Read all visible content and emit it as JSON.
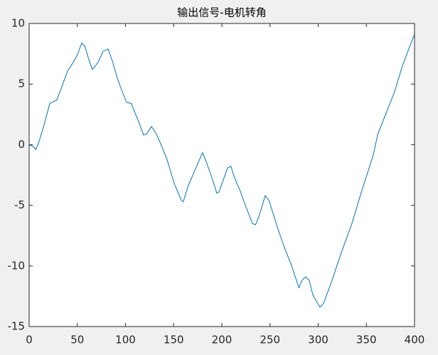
{
  "chart_data": {
    "type": "line",
    "title": "输出信号-电机转角",
    "x": [
      0,
      3,
      5,
      7,
      10,
      15,
      21.4,
      24,
      28.8,
      33,
      40,
      43.5,
      50,
      54.6,
      58,
      62,
      65.7,
      71.6,
      76.7,
      81.9,
      86,
      91.5,
      96,
      101,
      106,
      110,
      113.7,
      118.8,
      122,
      127,
      132,
      138,
      143,
      150.6,
      158,
      160,
      165,
      172.7,
      180,
      183.8,
      190,
      194.8,
      197,
      206,
      209.6,
      213,
      219,
      224,
      231.7,
      235,
      239,
      245,
      249,
      257.6,
      265,
      272,
      280,
      283,
      287,
      290.8,
      294.5,
      301.8,
      305.5,
      313,
      324,
      335,
      346,
      357,
      362,
      372,
      379,
      387,
      394,
      400
    ],
    "series": [
      {
        "color": "#0072bd",
        "values": [
          0,
          -0.1,
          -0.2,
          -0.4,
          0.2,
          1.5,
          3.4,
          3.5,
          3.7,
          4.6,
          6.1,
          6.5,
          7.4,
          8.4,
          8.1,
          7.0,
          6.2,
          6.8,
          7.7,
          7.9,
          7.0,
          5.5,
          4.5,
          3.5,
          3.4,
          2.6,
          1.9,
          0.8,
          0.9,
          1.5,
          0.9,
          -0.2,
          -1.2,
          -3.2,
          -4.6,
          -4.7,
          -3.4,
          -2.0,
          -0.65,
          -1.4,
          -2.8,
          -4.0,
          -3.9,
          -1.9,
          -1.8,
          -2.7,
          -3.8,
          -4.9,
          -6.5,
          -6.6,
          -5.8,
          -4.2,
          -4.6,
          -6.8,
          -8.5,
          -9.9,
          -11.8,
          -11.2,
          -10.9,
          -11.2,
          -12.4,
          -13.4,
          -13.1,
          -11.5,
          -8.9,
          -6.5,
          -3.6,
          -0.9,
          0.9,
          2.9,
          4.3,
          6.4,
          7.9,
          9.1
        ]
      }
    ],
    "xlim": [
      0,
      400
    ],
    "ylim": [
      -15,
      10
    ],
    "xticks": [
      0,
      50,
      100,
      150,
      200,
      250,
      300,
      350,
      400
    ],
    "yticks": [
      -15,
      -10,
      -5,
      0,
      5,
      10
    ]
  }
}
